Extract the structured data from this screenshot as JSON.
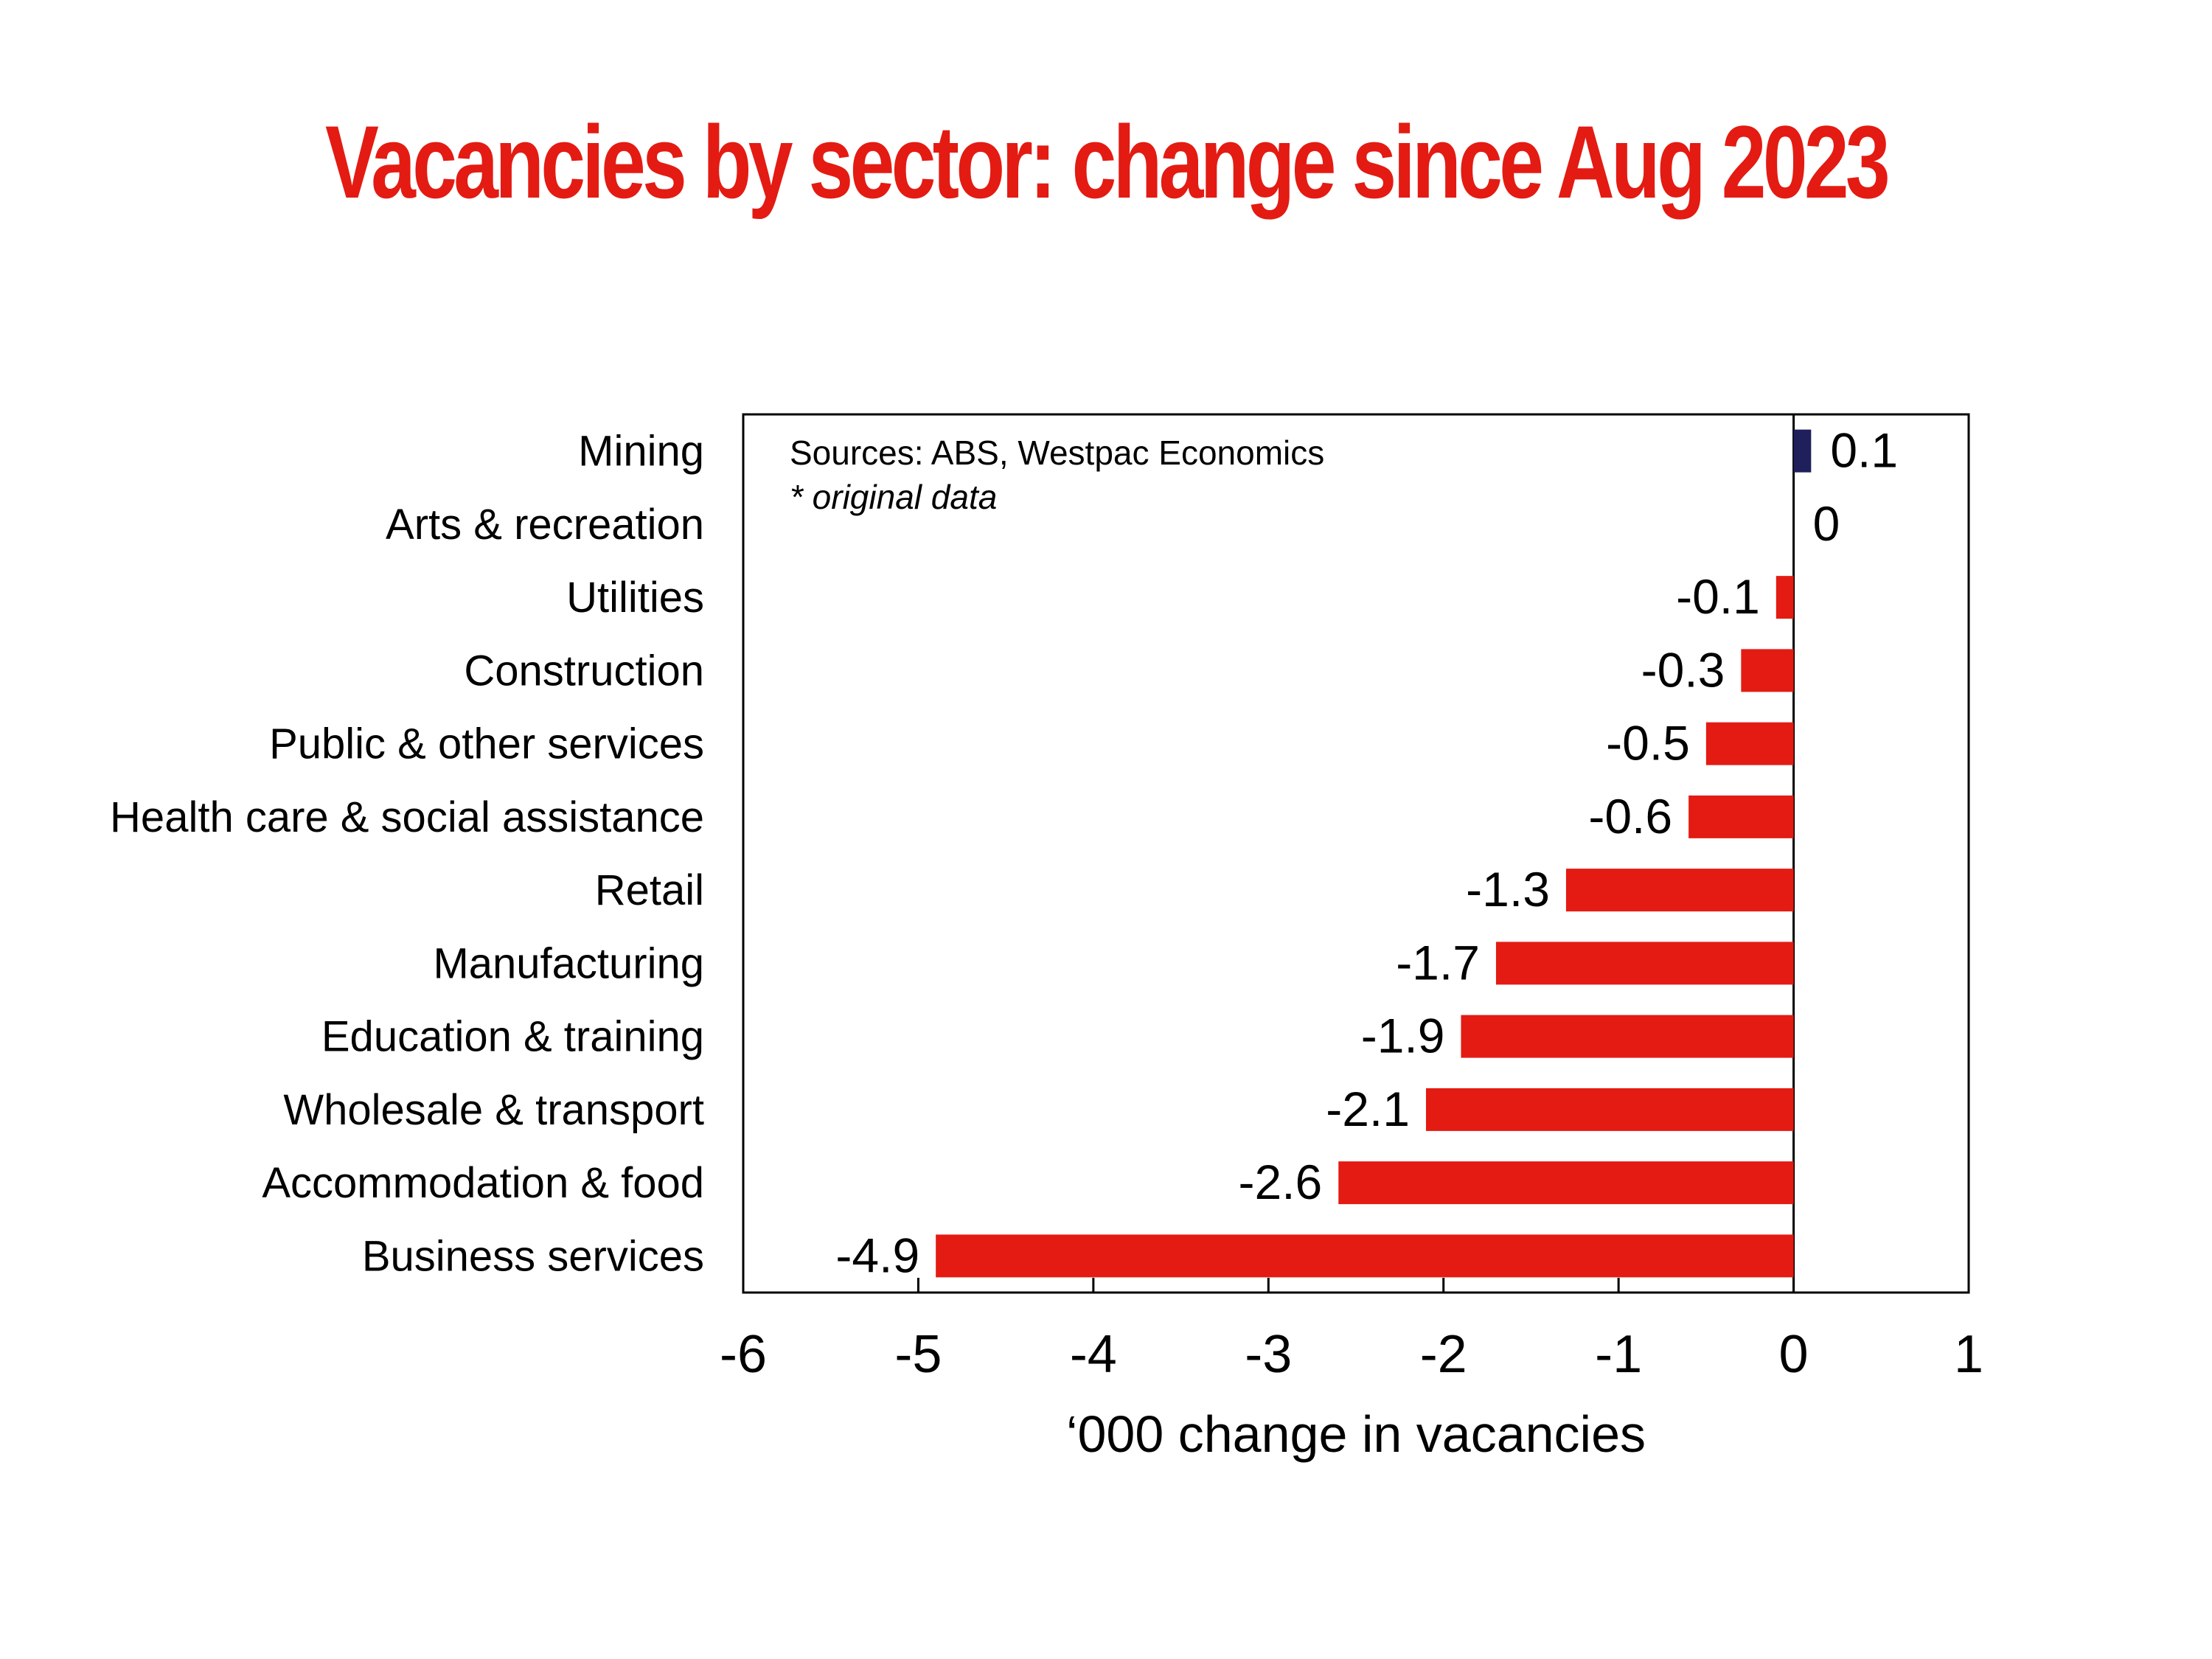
{
  "chart_data": {
    "type": "bar",
    "orientation": "horizontal",
    "title": "Vacancies by sector: change since Aug 2023",
    "xlabel": "‘000 change in vacancies",
    "ylabel": "",
    "xlim": [
      -6,
      1
    ],
    "x_ticks": [
      "-6",
      "-5",
      "-4",
      "-3",
      "-2",
      "-1",
      "0",
      "1"
    ],
    "categories": [
      "Mining",
      "Arts & recreation",
      "Utilities",
      "Construction",
      "Public & other services",
      "Health care & social assistance",
      "Retail",
      "Manufacturing",
      "Education & training",
      "Wholesale & transport",
      "Accommodation & food",
      "Business services"
    ],
    "values": [
      0.1,
      0,
      -0.1,
      -0.3,
      -0.5,
      -0.6,
      -1.3,
      -1.7,
      -1.9,
      -2.1,
      -2.6,
      -4.9
    ],
    "data_labels": [
      "0.1",
      "0",
      "-0.1",
      "-0.3",
      "-0.5",
      "-0.6",
      "-1.3",
      "-1.7",
      "-1.9",
      "-2.1",
      "-2.6",
      "-4.9"
    ],
    "annotations": [
      "Sources: ABS, Westpac Economics",
      "* original data"
    ],
    "grid": false,
    "legend": "none",
    "colors": {
      "title": "#e31b13",
      "negative_bar": "#e31b13",
      "positive_bar": "#1f1f5c",
      "axis": "#000000",
      "text": "#000000"
    }
  }
}
